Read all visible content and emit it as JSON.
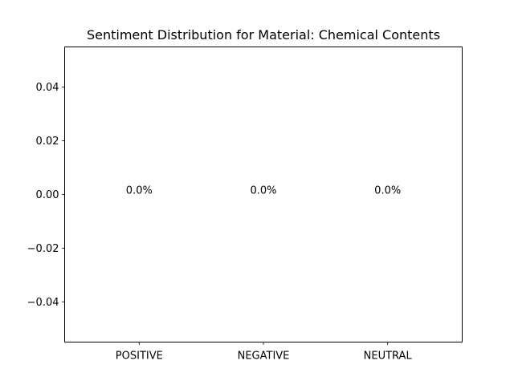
{
  "chart_data": {
    "type": "bar",
    "title": "Sentiment Distribution for Material: Chemical Contents",
    "xlabel": "",
    "ylabel": "",
    "categories": [
      "POSITIVE",
      "NEGATIVE",
      "NEUTRAL"
    ],
    "values": [
      0,
      0,
      0
    ],
    "data_labels": [
      "0.0%",
      "0.0%",
      "0.0%"
    ],
    "ylim": [
      -0.055,
      0.055
    ],
    "yticks": [
      0.04,
      0.02,
      0.0,
      -0.02,
      -0.04
    ],
    "ytick_labels": [
      "0.04",
      "0.02",
      "0.00",
      "−0.02",
      "−0.04"
    ],
    "grid": false,
    "legend": "none"
  }
}
